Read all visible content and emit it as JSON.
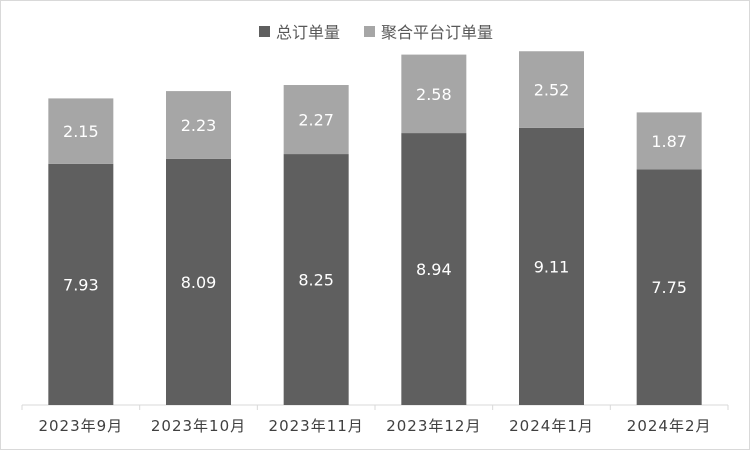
{
  "chart_data": {
    "type": "bar",
    "stacked": true,
    "categories": [
      "2023年9月",
      "2023年10月",
      "2023年11月",
      "2023年12月",
      "2024年1月",
      "2024年2月"
    ],
    "series": [
      {
        "name": "总订单量",
        "values": [
          7.93,
          8.09,
          8.25,
          8.94,
          9.11,
          7.75
        ],
        "color": "#5f5f5f"
      },
      {
        "name": "聚合平台订单量",
        "values": [
          2.15,
          2.23,
          2.27,
          2.58,
          2.52,
          1.87
        ],
        "color": "#a6a6a6"
      }
    ],
    "value_labels": {
      "总订单量": [
        "7.93",
        "8.09",
        "8.25",
        "8.94",
        "9.11",
        "7.75"
      ],
      "聚合平台订单量": [
        "2.15",
        "2.23",
        "2.27",
        "2.58",
        "2.52",
        "1.87"
      ]
    },
    "title": "",
    "xlabel": "",
    "ylabel": "",
    "ylim": [
      0,
      12
    ],
    "grid": false,
    "legend_position": "top-center"
  }
}
